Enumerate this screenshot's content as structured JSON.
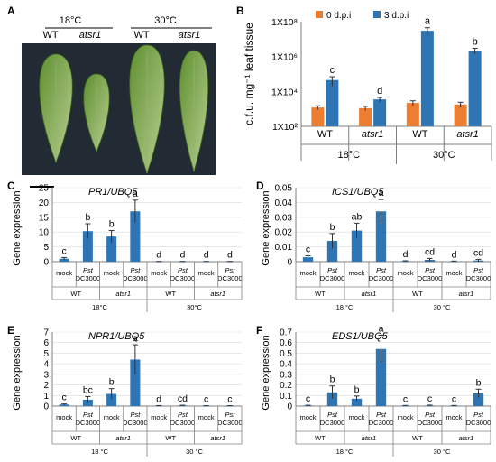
{
  "panel_a": {
    "letter": "A",
    "groups": [
      {
        "temp": "18°C",
        "genotypes": [
          {
            "label": "WT",
            "italic": false
          },
          {
            "label": "atsr1",
            "italic": true
          }
        ]
      },
      {
        "temp": "30°C",
        "genotypes": [
          {
            "label": "WT",
            "italic": false
          },
          {
            "label": "atsr1",
            "italic": true
          }
        ]
      }
    ],
    "background_color": "#222b33",
    "leaf_colors": [
      "#5e8f2f",
      "#b9cf92"
    ]
  },
  "colors": {
    "orange": "#ed7d31",
    "blue": "#2e75b6",
    "axis": "#7f7f7f",
    "grid": "#d9d9d9"
  },
  "chart_data": [
    {
      "id": "B",
      "letter": "B",
      "type": "bar",
      "scale": "log",
      "ylabel": "c.f.u. mg⁻¹ leaf tissue",
      "yticks": [
        "1X10²",
        "1X10⁴",
        "1X10⁶",
        "1X10⁸"
      ],
      "ytick_values": [
        100,
        10000,
        1000000,
        100000000
      ],
      "ylim": [
        100,
        100000000
      ],
      "legend": [
        "0 d.p.i",
        "3 d.p.i"
      ],
      "categories": [
        {
          "label": "WT",
          "italic": false
        },
        {
          "label": "atsr1",
          "italic": true
        },
        {
          "label": "WT",
          "italic": false
        },
        {
          "label": "atsr1",
          "italic": true
        }
      ],
      "temp_labels": [
        "18°C",
        "30°C"
      ],
      "series": [
        {
          "name": "0 d.p.i",
          "color": "#ed7d31",
          "values": [
            1200,
            1100,
            2200,
            1800
          ],
          "errors": [
            300,
            300,
            700,
            600
          ],
          "letters": [
            "",
            "",
            "",
            ""
          ]
        },
        {
          "name": "3 d.p.i",
          "color": "#2e75b6",
          "values": [
            45000,
            3500,
            30000000,
            2200000
          ],
          "errors": [
            25000,
            1000,
            15000000,
            800000
          ],
          "letters": [
            "c",
            "d",
            "a",
            "b"
          ]
        }
      ]
    },
    {
      "id": "C",
      "letter": "C",
      "type": "bar",
      "scale": "linear",
      "gene": "PR1/UBQ5",
      "ylabel": "Gene expression",
      "ylim": [
        0,
        25
      ],
      "yticks": [
        "0",
        "5",
        "10",
        "15",
        "20",
        "25"
      ],
      "ytick_values": [
        0,
        5,
        10,
        15,
        20,
        25
      ],
      "values": [
        1,
        10.3,
        8.5,
        17,
        0.05,
        0.05,
        0.05,
        0.05
      ],
      "errors": [
        0.4,
        2.5,
        2.0,
        3.8,
        0.05,
        0.05,
        0.05,
        0.05
      ],
      "letters": [
        "c",
        "b",
        "b",
        "a",
        "d",
        "d",
        "d",
        "d"
      ],
      "temp_labels": [
        "18°C",
        "30°C"
      ]
    },
    {
      "id": "D",
      "letter": "D",
      "type": "bar",
      "scale": "linear",
      "gene": "ICS1/UBQ5",
      "ylabel": "Gene expression",
      "ylim": [
        0,
        0.05
      ],
      "yticks": [
        "0",
        "0.01",
        "0.02",
        "0.03",
        "0.04",
        "0.05"
      ],
      "ytick_values": [
        0,
        0.01,
        0.02,
        0.03,
        0.04,
        0.05
      ],
      "values": [
        0.003,
        0.014,
        0.021,
        0.034,
        0.0003,
        0.0012,
        0.0002,
        0.0008
      ],
      "errors": [
        0.001,
        0.005,
        0.005,
        0.008,
        0.0003,
        0.001,
        0.0002,
        0.0008
      ],
      "letters": [
        "c",
        "b",
        "ab",
        "a",
        "d",
        "cd",
        "d",
        "cd"
      ],
      "temp_labels": [
        "18 °C",
        "30 °C"
      ]
    },
    {
      "id": "E",
      "letter": "E",
      "type": "bar",
      "scale": "linear",
      "gene": "NPR1/UBQ5",
      "ylabel": "Gene expression",
      "ylim": [
        0,
        7
      ],
      "yticks": [
        "0",
        "1",
        "2",
        "3",
        "4",
        "5",
        "6",
        "7"
      ],
      "ytick_values": [
        0,
        1,
        2,
        3,
        4,
        5,
        6,
        7
      ],
      "values": [
        0.15,
        0.6,
        1.15,
        4.4,
        0.03,
        0.05,
        0.02,
        0.02
      ],
      "errors": [
        0.05,
        0.3,
        0.5,
        1.4,
        0.02,
        0.03,
        0.02,
        0.02
      ],
      "letters": [
        "c",
        "bc",
        "b",
        "a",
        "d",
        "cd",
        "c",
        "c"
      ],
      "temp_labels": [
        "18 °C",
        "30 °C"
      ]
    },
    {
      "id": "F",
      "letter": "F",
      "type": "bar",
      "scale": "linear",
      "gene": "EDS1/UBQ5",
      "ylabel": "Gene expression",
      "ylim": [
        0,
        0.7
      ],
      "yticks": [
        "0",
        "0.1",
        "0.2",
        "0.3",
        "0.4",
        "0.5",
        "0.6",
        "0.7"
      ],
      "ytick_values": [
        0,
        0.1,
        0.2,
        0.3,
        0.4,
        0.5,
        0.6,
        0.7
      ],
      "values": [
        0.005,
        0.13,
        0.07,
        0.54,
        0.003,
        0.005,
        0.003,
        0.12
      ],
      "errors": [
        0.003,
        0.06,
        0.025,
        0.13,
        0.003,
        0.004,
        0.003,
        0.04
      ],
      "letters": [
        "c",
        "b",
        "b",
        "a",
        "c",
        "c",
        "c",
        "b"
      ],
      "temp_labels": [
        "18 °C",
        "30 °C"
      ]
    }
  ],
  "expression_categories": {
    "treatments": [
      "mock",
      "Pst",
      "DC3000",
      "mock",
      "Pst",
      "DC3000",
      "mock",
      "Pst",
      "DC3000",
      "mock",
      "Pst",
      "DC3000"
    ],
    "genotypes": [
      {
        "label": "WT",
        "italic": false
      },
      {
        "label": "atsr1",
        "italic": true
      },
      {
        "label": "WT",
        "italic": false
      },
      {
        "label": "atsr1",
        "italic": true
      }
    ]
  }
}
